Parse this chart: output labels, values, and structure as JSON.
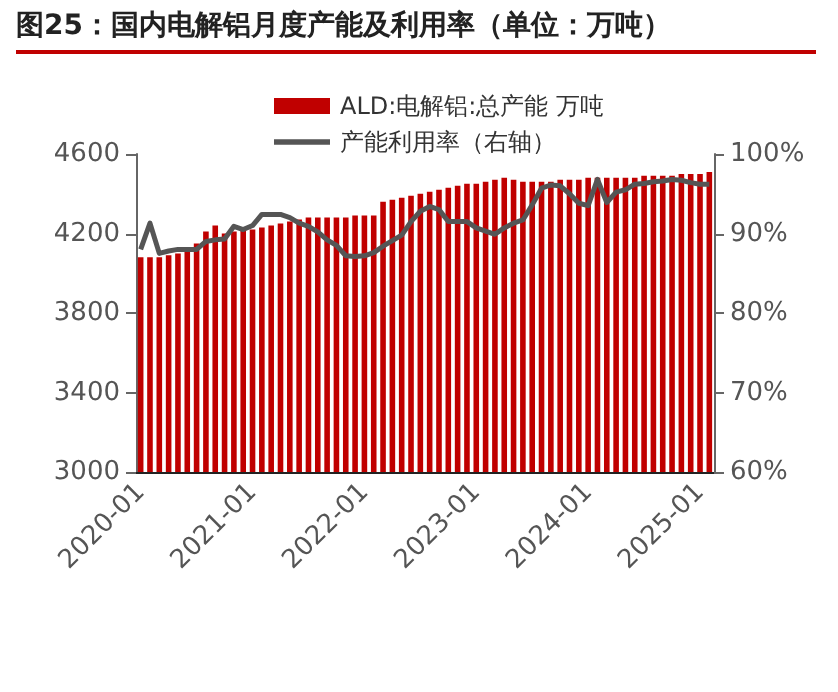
{
  "chart_data": {
    "type": "bar",
    "title": "图25：国内电解铝月度产能及利用率（单位：万吨）",
    "categories": [
      "2020-01",
      null,
      null,
      null,
      null,
      null,
      null,
      null,
      null,
      null,
      null,
      null,
      "2021-01",
      null,
      null,
      null,
      null,
      null,
      null,
      null,
      null,
      null,
      null,
      null,
      "2022-01",
      null,
      null,
      null,
      null,
      null,
      null,
      null,
      null,
      null,
      null,
      null,
      "2023-01",
      null,
      null,
      null,
      null,
      null,
      null,
      null,
      null,
      null,
      null,
      null,
      "2024-01",
      null,
      null,
      null,
      null,
      null,
      null,
      null,
      null,
      null,
      null,
      null,
      "2025-01",
      null
    ],
    "series": [
      {
        "name": "ALD:电解铝:总产能 万吨",
        "color": "#c00000",
        "values": [
          4080,
          4080,
          4080,
          4090,
          4100,
          4110,
          4150,
          4210,
          4240,
          4200,
          4210,
          4220,
          4220,
          4230,
          4240,
          4250,
          4260,
          4270,
          4280,
          4280,
          4280,
          4280,
          4280,
          4290,
          4290,
          4290,
          4360,
          4370,
          4380,
          4390,
          4400,
          4410,
          4420,
          4430,
          4440,
          4450,
          4450,
          4460,
          4470,
          4480,
          4470,
          4460,
          4460,
          4460,
          4460,
          4470,
          4470,
          4470,
          4480,
          4480,
          4480,
          4480,
          4480,
          4480,
          4490,
          4490,
          4490,
          4490,
          4500,
          4500,
          4500,
          4510
        ]
      },
      {
        "name": "产能利用率（右轴）",
        "type": "line",
        "axis": "y2",
        "color": "#555555",
        "values": [
          88.0,
          91.3,
          87.5,
          87.8,
          88.0,
          88.0,
          88.0,
          89.0,
          89.2,
          89.3,
          90.9,
          90.5,
          91.0,
          92.4,
          92.4,
          92.4,
          92.0,
          91.3,
          90.9,
          90.2,
          89.2,
          88.5,
          87.2,
          87.1,
          87.2,
          87.6,
          88.4,
          89.1,
          89.8,
          91.5,
          92.8,
          93.4,
          93.0,
          91.5,
          91.5,
          91.5,
          90.7,
          90.3,
          89.9,
          90.7,
          91.3,
          91.7,
          93.6,
          95.7,
          96.1,
          96.0,
          95.0,
          93.8,
          93.5,
          96.8,
          93.9,
          95.2,
          95.5,
          96.2,
          96.3,
          96.5,
          96.6,
          96.8,
          96.7,
          96.4,
          96.2,
          96.2
        ]
      }
    ],
    "ylim": [
      3000,
      4600
    ],
    "yticks": [
      3000,
      3400,
      3800,
      4200,
      4600
    ],
    "y2lim": [
      60,
      100
    ],
    "y2ticks": [
      {
        "value": 60,
        "label": "60%"
      },
      {
        "value": 70,
        "label": "70%"
      },
      {
        "value": 80,
        "label": "80%"
      },
      {
        "value": 90,
        "label": "90%"
      },
      {
        "value": 100,
        "label": "100%"
      }
    ],
    "grid": false,
    "legend": "top",
    "marker": "none",
    "line_style": "solid"
  }
}
